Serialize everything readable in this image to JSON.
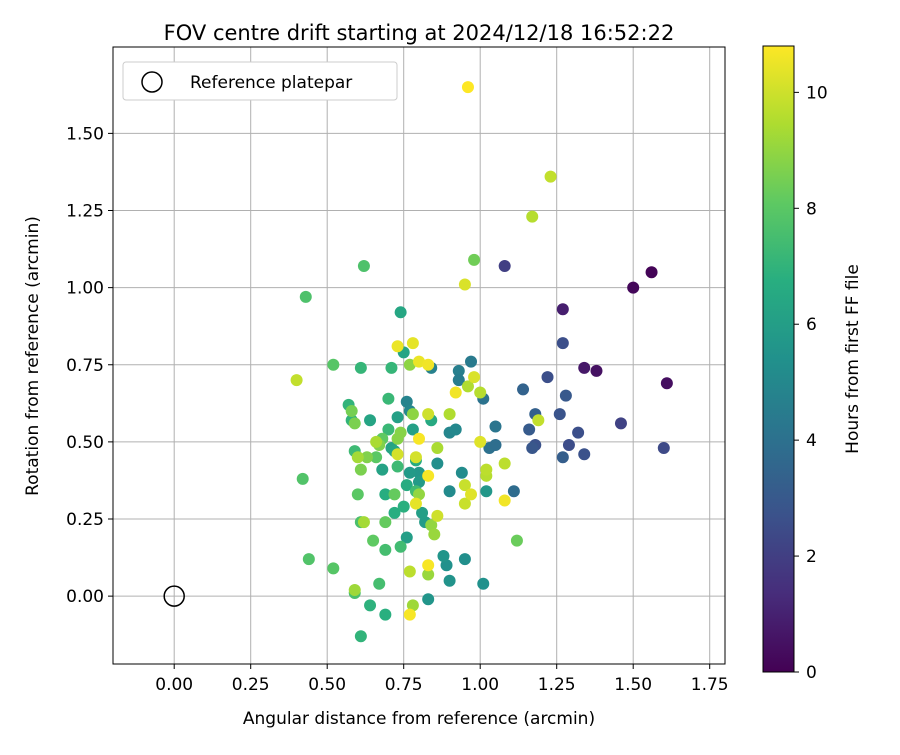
{
  "chart_data": {
    "type": "scatter",
    "title": "FOV centre drift starting at 2024/12/18 16:52:22",
    "xlabel": "Angular distance from reference (arcmin)",
    "ylabel": "Rotation from reference (arcmin)",
    "xlim": [
      -0.2,
      1.8
    ],
    "ylim": [
      -0.22,
      1.78
    ],
    "xticks": [
      "0.00",
      "0.25",
      "0.50",
      "0.75",
      "1.00",
      "1.25",
      "1.50",
      "1.75"
    ],
    "yticks": [
      "0.00",
      "0.25",
      "0.50",
      "0.75",
      "1.00",
      "1.25",
      "1.50"
    ],
    "grid": true,
    "legend": {
      "placement": "upper-left",
      "entries": [
        "Reference platepar"
      ]
    },
    "reference_point": {
      "label": "Reference platepar",
      "x": 0.0,
      "y": 0.0
    },
    "colorbar": {
      "label": "Hours from first FF file",
      "colormap": "viridis",
      "range": [
        0,
        10.8
      ],
      "ticks": [
        "0",
        "2",
        "4",
        "6",
        "8",
        "10"
      ]
    },
    "points": [
      {
        "x": 1.56,
        "y": 1.05,
        "h": 0.1
      },
      {
        "x": 1.5,
        "y": 1.0,
        "h": 0.2
      },
      {
        "x": 1.61,
        "y": 0.69,
        "h": 0.4
      },
      {
        "x": 1.38,
        "y": 0.73,
        "h": 0.5
      },
      {
        "x": 1.34,
        "y": 0.74,
        "h": 0.7
      },
      {
        "x": 1.27,
        "y": 0.93,
        "h": 0.9
      },
      {
        "x": 1.08,
        "y": 1.07,
        "h": 2.0
      },
      {
        "x": 1.46,
        "y": 0.56,
        "h": 2.1
      },
      {
        "x": 1.6,
        "y": 0.48,
        "h": 2.4
      },
      {
        "x": 1.27,
        "y": 0.82,
        "h": 2.6
      },
      {
        "x": 1.29,
        "y": 0.49,
        "h": 2.5
      },
      {
        "x": 1.32,
        "y": 0.53,
        "h": 2.6
      },
      {
        "x": 1.34,
        "y": 0.46,
        "h": 2.7
      },
      {
        "x": 1.22,
        "y": 0.71,
        "h": 2.6
      },
      {
        "x": 1.26,
        "y": 0.59,
        "h": 2.8
      },
      {
        "x": 1.18,
        "y": 0.49,
        "h": 2.7
      },
      {
        "x": 1.17,
        "y": 0.48,
        "h": 2.9
      },
      {
        "x": 1.28,
        "y": 0.65,
        "h": 3.0
      },
      {
        "x": 1.27,
        "y": 0.45,
        "h": 3.2
      },
      {
        "x": 1.16,
        "y": 0.54,
        "h": 3.1
      },
      {
        "x": 1.18,
        "y": 0.59,
        "h": 3.3
      },
      {
        "x": 1.14,
        "y": 0.67,
        "h": 3.4
      },
      {
        "x": 1.11,
        "y": 0.34,
        "h": 3.8
      },
      {
        "x": 1.03,
        "y": 0.48,
        "h": 4.0
      },
      {
        "x": 1.05,
        "y": 0.49,
        "h": 3.9
      },
      {
        "x": 1.05,
        "y": 0.55,
        "h": 4.2
      },
      {
        "x": 1.01,
        "y": 0.64,
        "h": 4.1
      },
      {
        "x": 0.97,
        "y": 0.76,
        "h": 4.4
      },
      {
        "x": 0.93,
        "y": 0.73,
        "h": 4.6
      },
      {
        "x": 0.93,
        "y": 0.7,
        "h": 4.5
      },
      {
        "x": 0.84,
        "y": 0.74,
        "h": 4.7
      },
      {
        "x": 0.76,
        "y": 0.63,
        "h": 4.8
      },
      {
        "x": 0.77,
        "y": 0.6,
        "h": 4.9
      },
      {
        "x": 0.9,
        "y": 0.53,
        "h": 4.9
      },
      {
        "x": 0.92,
        "y": 0.54,
        "h": 5.0
      },
      {
        "x": 0.94,
        "y": 0.4,
        "h": 5.2
      },
      {
        "x": 0.9,
        "y": 0.34,
        "h": 5.1
      },
      {
        "x": 0.86,
        "y": 0.43,
        "h": 5.3
      },
      {
        "x": 0.95,
        "y": 0.12,
        "h": 5.3
      },
      {
        "x": 1.01,
        "y": 0.04,
        "h": 5.4
      },
      {
        "x": 0.9,
        "y": 0.05,
        "h": 5.5
      },
      {
        "x": 0.89,
        "y": 0.1,
        "h": 5.4
      },
      {
        "x": 0.88,
        "y": 0.13,
        "h": 5.6
      },
      {
        "x": 0.83,
        "y": -0.01,
        "h": 5.6
      },
      {
        "x": 1.02,
        "y": 0.34,
        "h": 5.7
      },
      {
        "x": 0.8,
        "y": 0.4,
        "h": 5.7
      },
      {
        "x": 0.77,
        "y": 0.4,
        "h": 5.8
      },
      {
        "x": 0.8,
        "y": 0.37,
        "h": 5.8
      },
      {
        "x": 0.82,
        "y": 0.24,
        "h": 5.9
      },
      {
        "x": 0.76,
        "y": 0.19,
        "h": 6.0
      },
      {
        "x": 0.81,
        "y": 0.27,
        "h": 6.0
      },
      {
        "x": 0.78,
        "y": 0.54,
        "h": 6.1
      },
      {
        "x": 0.73,
        "y": 0.58,
        "h": 6.1
      },
      {
        "x": 0.71,
        "y": 0.48,
        "h": 6.2
      },
      {
        "x": 0.68,
        "y": 0.41,
        "h": 6.2
      },
      {
        "x": 0.64,
        "y": 0.57,
        "h": 6.3
      },
      {
        "x": 0.75,
        "y": 0.79,
        "h": 6.3
      },
      {
        "x": 0.74,
        "y": 0.92,
        "h": 6.4
      },
      {
        "x": 0.84,
        "y": 0.57,
        "h": 6.5
      },
      {
        "x": 0.72,
        "y": 0.47,
        "h": 6.4
      },
      {
        "x": 0.79,
        "y": 0.44,
        "h": 6.6
      },
      {
        "x": 0.76,
        "y": 0.36,
        "h": 6.6
      },
      {
        "x": 0.69,
        "y": 0.33,
        "h": 6.7
      },
      {
        "x": 0.72,
        "y": 0.27,
        "h": 6.7
      },
      {
        "x": 0.75,
        "y": 0.29,
        "h": 6.8
      },
      {
        "x": 0.69,
        "y": -0.06,
        "h": 6.8
      },
      {
        "x": 0.64,
        "y": -0.03,
        "h": 6.9
      },
      {
        "x": 0.61,
        "y": -0.13,
        "h": 7.0
      },
      {
        "x": 0.57,
        "y": 0.62,
        "h": 7.0
      },
      {
        "x": 0.58,
        "y": 0.57,
        "h": 7.0
      },
      {
        "x": 0.61,
        "y": 0.74,
        "h": 7.1
      },
      {
        "x": 0.71,
        "y": 0.74,
        "h": 7.1
      },
      {
        "x": 0.7,
        "y": 0.64,
        "h": 7.2
      },
      {
        "x": 0.7,
        "y": 0.54,
        "h": 7.2
      },
      {
        "x": 0.59,
        "y": 0.47,
        "h": 7.3
      },
      {
        "x": 0.73,
        "y": 0.42,
        "h": 7.3
      },
      {
        "x": 0.79,
        "y": 0.34,
        "h": 7.4
      },
      {
        "x": 0.74,
        "y": 0.16,
        "h": 7.4
      },
      {
        "x": 0.69,
        "y": 0.15,
        "h": 7.5
      },
      {
        "x": 0.67,
        "y": 0.04,
        "h": 7.5
      },
      {
        "x": 0.59,
        "y": 0.01,
        "h": 7.6
      },
      {
        "x": 0.61,
        "y": 0.24,
        "h": 7.6
      },
      {
        "x": 0.62,
        "y": 1.07,
        "h": 7.7
      },
      {
        "x": 0.43,
        "y": 0.97,
        "h": 7.7
      },
      {
        "x": 0.42,
        "y": 0.38,
        "h": 7.8
      },
      {
        "x": 0.44,
        "y": 0.12,
        "h": 7.8
      },
      {
        "x": 0.52,
        "y": 0.09,
        "h": 7.9
      },
      {
        "x": 0.52,
        "y": 0.75,
        "h": 7.9
      },
      {
        "x": 0.6,
        "y": 0.33,
        "h": 8.0
      },
      {
        "x": 0.66,
        "y": 0.45,
        "h": 8.0
      },
      {
        "x": 0.68,
        "y": 0.51,
        "h": 8.1
      },
      {
        "x": 0.65,
        "y": 0.18,
        "h": 8.1
      },
      {
        "x": 0.69,
        "y": 0.24,
        "h": 8.2
      },
      {
        "x": 0.72,
        "y": 0.33,
        "h": 8.2
      },
      {
        "x": 1.12,
        "y": 0.18,
        "h": 8.3
      },
      {
        "x": 0.98,
        "y": 1.09,
        "h": 8.4
      },
      {
        "x": 0.58,
        "y": 0.6,
        "h": 8.5
      },
      {
        "x": 0.59,
        "y": 0.56,
        "h": 8.6
      },
      {
        "x": 0.61,
        "y": 0.41,
        "h": 8.6
      },
      {
        "x": 0.63,
        "y": 0.45,
        "h": 8.7
      },
      {
        "x": 0.67,
        "y": 0.49,
        "h": 8.7
      },
      {
        "x": 0.73,
        "y": 0.51,
        "h": 8.8
      },
      {
        "x": 0.74,
        "y": 0.53,
        "h": 8.8
      },
      {
        "x": 0.77,
        "y": 0.75,
        "h": 8.9
      },
      {
        "x": 0.78,
        "y": 0.59,
        "h": 8.9
      },
      {
        "x": 0.8,
        "y": 0.33,
        "h": 9.0
      },
      {
        "x": 0.84,
        "y": 0.23,
        "h": 9.0
      },
      {
        "x": 0.85,
        "y": 0.2,
        "h": 9.1
      },
      {
        "x": 0.83,
        "y": 0.07,
        "h": 9.1
      },
      {
        "x": 0.78,
        "y": -0.03,
        "h": 9.2
      },
      {
        "x": 0.59,
        "y": 0.02,
        "h": 9.2
      },
      {
        "x": 0.6,
        "y": 0.45,
        "h": 9.3
      },
      {
        "x": 0.62,
        "y": 0.24,
        "h": 9.3
      },
      {
        "x": 0.66,
        "y": 0.5,
        "h": 9.4
      },
      {
        "x": 0.86,
        "y": 0.48,
        "h": 9.4
      },
      {
        "x": 0.9,
        "y": 0.59,
        "h": 9.5
      },
      {
        "x": 0.96,
        "y": 0.68,
        "h": 9.5
      },
      {
        "x": 1.0,
        "y": 0.66,
        "h": 9.6
      },
      {
        "x": 1.02,
        "y": 0.39,
        "h": 9.6
      },
      {
        "x": 1.02,
        "y": 0.41,
        "h": 9.7
      },
      {
        "x": 1.08,
        "y": 0.43,
        "h": 9.7
      },
      {
        "x": 1.17,
        "y": 1.23,
        "h": 9.6
      },
      {
        "x": 1.23,
        "y": 1.36,
        "h": 9.8
      },
      {
        "x": 1.19,
        "y": 0.57,
        "h": 9.8
      },
      {
        "x": 0.95,
        "y": 0.3,
        "h": 9.9
      },
      {
        "x": 0.95,
        "y": 0.36,
        "h": 9.9
      },
      {
        "x": 0.86,
        "y": 0.26,
        "h": 10.0
      },
      {
        "x": 0.83,
        "y": 0.59,
        "h": 10.0
      },
      {
        "x": 0.79,
        "y": 0.45,
        "h": 10.1
      },
      {
        "x": 0.73,
        "y": 0.46,
        "h": 10.1
      },
      {
        "x": 0.4,
        "y": 0.7,
        "h": 9.8
      },
      {
        "x": 0.95,
        "y": 1.01,
        "h": 10.2
      },
      {
        "x": 0.98,
        "y": 0.71,
        "h": 10.2
      },
      {
        "x": 1.0,
        "y": 0.5,
        "h": 10.3
      },
      {
        "x": 0.97,
        "y": 0.33,
        "h": 10.3
      },
      {
        "x": 0.77,
        "y": 0.08,
        "h": 9.7
      },
      {
        "x": 0.79,
        "y": 0.3,
        "h": 10.4
      },
      {
        "x": 0.78,
        "y": 0.82,
        "h": 10.4
      },
      {
        "x": 0.73,
        "y": 0.81,
        "h": 10.5
      },
      {
        "x": 0.8,
        "y": 0.76,
        "h": 10.5
      },
      {
        "x": 0.83,
        "y": 0.75,
        "h": 10.6
      },
      {
        "x": 0.92,
        "y": 0.66,
        "h": 10.6
      },
      {
        "x": 1.08,
        "y": 0.31,
        "h": 10.6
      },
      {
        "x": 0.83,
        "y": 0.39,
        "h": 10.7
      },
      {
        "x": 0.83,
        "y": 0.1,
        "h": 10.7
      },
      {
        "x": 0.77,
        "y": -0.06,
        "h": 10.7
      },
      {
        "x": 0.8,
        "y": 0.51,
        "h": 10.7
      },
      {
        "x": 0.96,
        "y": 1.65,
        "h": 10.8
      }
    ]
  }
}
